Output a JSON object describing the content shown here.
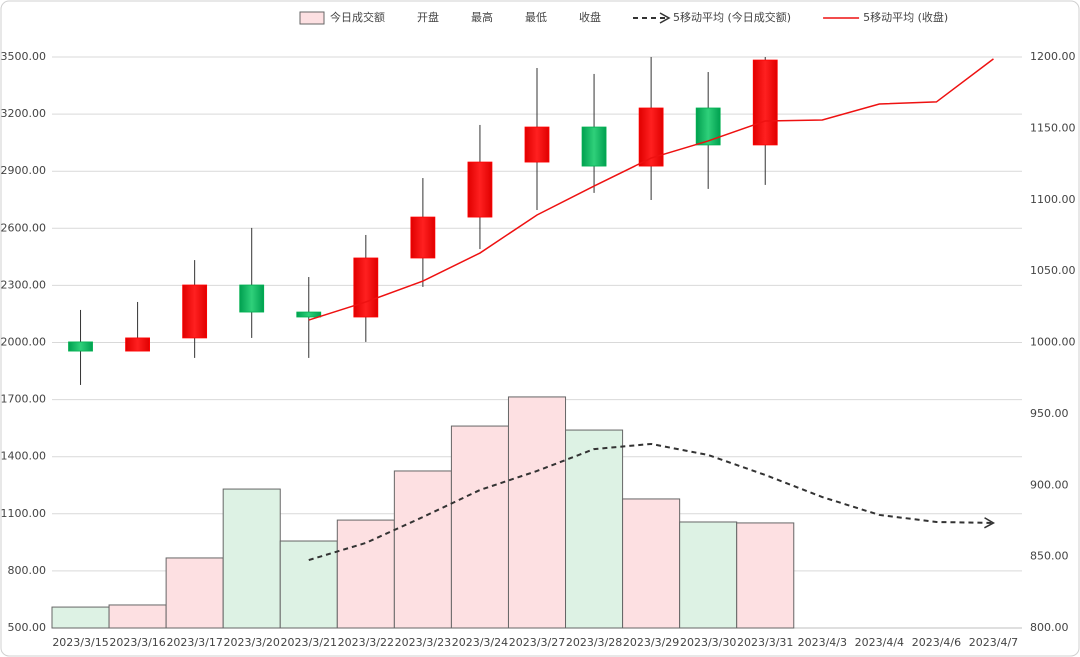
{
  "chart_data": {
    "type": "candlestick",
    "categories": [
      "2023/3/15",
      "2023/3/16",
      "2023/3/17",
      "2023/3/20",
      "2023/3/21",
      "2023/3/22",
      "2023/3/23",
      "2023/3/24",
      "2023/3/27",
      "2023/3/28",
      "2023/3/29",
      "2023/3/30",
      "2023/3/31",
      "2023/4/3",
      "2023/4/4",
      "2023/4/6",
      "2023/4/7"
    ],
    "series": [
      {
        "name": "今日成交额",
        "type": "bar",
        "color": "#fde0e2",
        "down_color": "#ddf2e4",
        "values": [
          610,
          621,
          868,
          1230,
          957,
          1067,
          1325,
          1561,
          1714,
          1540,
          1178,
          1057,
          1052,
          null,
          null,
          null,
          null
        ]
      },
      {
        "name": "开盘",
        "type": "open",
        "values": [
          2003,
          1955,
          2024,
          2302,
          2160,
          2134,
          2444,
          2659,
          2948,
          3132,
          2927,
          3232,
          3038,
          null,
          null,
          null,
          null
        ]
      },
      {
        "name": "最高",
        "type": "high",
        "values": [
          2171,
          2213,
          2433,
          2602,
          2344,
          2565,
          2864,
          3143,
          3442,
          3411,
          3500,
          3421,
          3500,
          null,
          null,
          null,
          null
        ]
      },
      {
        "name": "最低",
        "type": "low",
        "values": [
          1777,
          1955,
          1919,
          2024,
          1919,
          2003,
          2292,
          2491,
          2696,
          2786,
          2749,
          2807,
          2828,
          null,
          null,
          null,
          null
        ]
      },
      {
        "name": "收盘",
        "type": "close",
        "values": [
          1955,
          2024,
          2302,
          2160,
          2134,
          2444,
          2659,
          2948,
          3132,
          2927,
          3232,
          3038,
          3484,
          null,
          null,
          null,
          null
        ]
      },
      {
        "name": "5移动平均 (今日成交额)",
        "type": "line",
        "dashed": true,
        "color": "#333333",
        "values": [
          null,
          null,
          null,
          null,
          857,
          947,
          1083,
          1225,
          1325,
          1440,
          1467,
          1409,
          1304,
          1188,
          1094,
          1057,
          1052
        ]
      },
      {
        "name": "5移动平均 (收盘)",
        "type": "line",
        "dashed": false,
        "color": "#ee1111",
        "values": [
          null,
          null,
          null,
          null,
          2118,
          2213,
          2323,
          2470,
          2670,
          2822,
          2969,
          3059,
          3164,
          3169,
          3253,
          3264,
          3490
        ]
      }
    ],
    "up_color": "#ff0000",
    "down_color": "#00b050",
    "ylim": [
      500,
      3500
    ],
    "yticks": [
      {
        "value": 500,
        "label": "500.00"
      },
      {
        "value": 800,
        "label": "800.00"
      },
      {
        "value": 1100,
        "label": "1100.00"
      },
      {
        "value": 1400,
        "label": "1400.00"
      },
      {
        "value": 1700,
        "label": "1700.00"
      },
      {
        "value": 2000,
        "label": "2000.00"
      },
      {
        "value": 2300,
        "label": "2300.00"
      },
      {
        "value": 2600,
        "label": "2600.00"
      },
      {
        "value": 2900,
        "label": "2900.00"
      },
      {
        "value": 3200,
        "label": "3200.00"
      },
      {
        "value": 3500,
        "label": "3500.00"
      }
    ],
    "y2lim": [
      800,
      1200
    ],
    "y2ticks": [
      {
        "value": 800,
        "label": "800.00"
      },
      {
        "value": 850,
        "label": "850.00"
      },
      {
        "value": 900,
        "label": "900.00"
      },
      {
        "value": 950,
        "label": "950.00"
      },
      {
        "value": 1000,
        "label": "1000.00"
      },
      {
        "value": 1050,
        "label": "1050.00"
      },
      {
        "value": 1100,
        "label": "1100.00"
      },
      {
        "value": 1150,
        "label": "1150.00"
      },
      {
        "value": 1200,
        "label": "1200.00"
      }
    ],
    "grid": true
  }
}
